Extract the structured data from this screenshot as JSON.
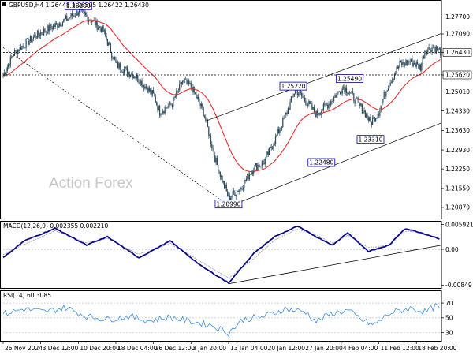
{
  "colors": {
    "candle": "#2c4a5c",
    "ma": "#e62e2e",
    "macd": "#0a0a8c",
    "macd_signal": "#999999",
    "rsi": "#3a8ee0",
    "label_border": "#0000aa",
    "axis": "#000000"
  },
  "header": {
    "price_title": "GBPUSD,H4  1.26448 1.26505 1.26422 1.26430",
    "macd_title": "MACD(12,26,9) 0.002355 0.002210",
    "rsi_title": "RSI(14) 60.3085",
    "watermark": "Action Forex"
  },
  "chart_data": [
    {
      "type": "candlestick",
      "symbol": "GBPUSD",
      "timeframe": "H4",
      "ohlc_current": [
        1.26448,
        1.26505,
        1.26422,
        1.2643
      ],
      "ylim": [
        1.205,
        1.2825
      ],
      "y_ticks": [
        "1.27700",
        "1.27090",
        "1.26430",
        "1.25620",
        "1.25010",
        "1.24330",
        "1.23630",
        "1.22930",
        "1.22250",
        "1.21550",
        "1.20870"
      ],
      "y_tick_values": [
        1.277,
        1.2709,
        1.2643,
        1.2562,
        1.2501,
        1.2433,
        1.2363,
        1.2293,
        1.2225,
        1.2155,
        1.2087
      ],
      "highlighted_ticks": [
        "1.26430",
        "1.25620"
      ],
      "x_ticks": [
        "26 Nov 2024",
        "3 Dec 12:00",
        "10 Dec 20:00",
        "18 Dec 04:00",
        "26 Dec 12:00",
        "3 Jan 20:00",
        "13 Jan 04:00",
        "20 Jan 12:00",
        "27 Jan 20:00",
        "4 Feb 04:00",
        "11 Feb 12:00",
        "18 Feb 20:00"
      ],
      "x_tick_index": [
        0,
        36,
        72,
        108,
        144,
        180,
        216,
        252,
        288,
        324,
        360,
        396
      ],
      "bar_count": 420,
      "close_path": [
        [
          0,
          1.256
        ],
        [
          10,
          1.264
        ],
        [
          30,
          1.27
        ],
        [
          50,
          1.274
        ],
        [
          60,
          1.276
        ],
        [
          72,
          1.279
        ],
        [
          84,
          1.276
        ],
        [
          96,
          1.272
        ],
        [
          108,
          1.26
        ],
        [
          126,
          1.256
        ],
        [
          144,
          1.249
        ],
        [
          150,
          1.243
        ],
        [
          162,
          1.246
        ],
        [
          172,
          1.254
        ],
        [
          180,
          1.252
        ],
        [
          192,
          1.243
        ],
        [
          204,
          1.225
        ],
        [
          216,
          1.212
        ],
        [
          228,
          1.216
        ],
        [
          240,
          1.223
        ],
        [
          250,
          1.225
        ],
        [
          258,
          1.231
        ],
        [
          270,
          1.241
        ],
        [
          280,
          1.251
        ],
        [
          292,
          1.246
        ],
        [
          300,
          1.242
        ],
        [
          312,
          1.246
        ],
        [
          326,
          1.252
        ],
        [
          332,
          1.25
        ],
        [
          340,
          1.246
        ],
        [
          348,
          1.242
        ],
        [
          352,
          1.239
        ],
        [
          360,
          1.243
        ],
        [
          368,
          1.252
        ],
        [
          380,
          1.26
        ],
        [
          390,
          1.261
        ],
        [
          400,
          1.259
        ],
        [
          404,
          1.265
        ],
        [
          412,
          1.2663
        ],
        [
          420,
          1.2643
        ]
      ],
      "labels": [
        {
          "text": "1.28100",
          "bar": 72,
          "price": 1.281
        },
        {
          "text": "1.20990",
          "bar": 216,
          "price": 1.2099
        },
        {
          "text": "1.25220",
          "bar": 278,
          "price": 1.2522
        },
        {
          "text": "1.25490",
          "bar": 332,
          "price": 1.2549
        },
        {
          "text": "1.22480",
          "bar": 305,
          "price": 1.2248
        },
        {
          "text": "1.23310",
          "bar": 352,
          "price": 1.2331
        }
      ],
      "horizontal_levels": [
        1.2643,
        1.2562
      ],
      "channel_lines": [
        {
          "from": [
            195,
            1.2398
          ],
          "to": [
            420,
            1.2711
          ]
        },
        {
          "from": [
            216,
            1.209
          ],
          "to": [
            420,
            1.239
          ]
        }
      ],
      "downtrend_line": {
        "from": [
          0,
          1.266
        ],
        "to": [
          216,
          1.2095
        ]
      }
    },
    {
      "type": "line",
      "title": "MACD(12,26,9) 0.002355 0.002210",
      "ylim": [
        -0.009,
        0.0064
      ],
      "y_ticks": [
        "0.005921",
        "0.00",
        "-0.00849"
      ],
      "y_tick_values": [
        0.005921,
        0.0,
        -0.00849
      ],
      "macd_path": [
        [
          0,
          -0.002
        ],
        [
          20,
          0.002
        ],
        [
          50,
          0.005
        ],
        [
          80,
          0.001
        ],
        [
          100,
          0.003
        ],
        [
          130,
          -0.002
        ],
        [
          160,
          0.002
        ],
        [
          190,
          -0.004
        ],
        [
          216,
          -0.008
        ],
        [
          240,
          -0.001
        ],
        [
          260,
          0.003
        ],
        [
          282,
          0.0055
        ],
        [
          300,
          0.003
        ],
        [
          316,
          0.001
        ],
        [
          330,
          0.004
        ],
        [
          350,
          -0.0005
        ],
        [
          370,
          0.001
        ],
        [
          385,
          0.005
        ],
        [
          400,
          0.004
        ],
        [
          420,
          0.0024
        ]
      ],
      "signal_path": [
        [
          0,
          -0.0012
        ],
        [
          20,
          0.0012
        ],
        [
          50,
          0.0044
        ],
        [
          80,
          0.0016
        ],
        [
          100,
          0.0026
        ],
        [
          130,
          -0.0012
        ],
        [
          160,
          0.0014
        ],
        [
          190,
          -0.003
        ],
        [
          216,
          -0.0068
        ],
        [
          240,
          -0.0022
        ],
        [
          260,
          0.0022
        ],
        [
          282,
          0.0048
        ],
        [
          300,
          0.0034
        ],
        [
          316,
          0.0014
        ],
        [
          330,
          0.0034
        ],
        [
          350,
          0.0004
        ],
        [
          370,
          0.001
        ],
        [
          385,
          0.0043
        ],
        [
          400,
          0.0041
        ],
        [
          420,
          0.0022
        ]
      ],
      "trendline": {
        "from": [
          216,
          -0.0082
        ],
        "to": [
          420,
          0.001
        ]
      }
    },
    {
      "type": "line",
      "title": "RSI(14) 60.3085",
      "ylim": [
        20,
        85
      ],
      "y_ticks": [
        "70",
        "50",
        "30"
      ],
      "y_tick_values": [
        70,
        50,
        30
      ],
      "rsi_path": [
        [
          0,
          55
        ],
        [
          20,
          62
        ],
        [
          40,
          58
        ],
        [
          60,
          64
        ],
        [
          80,
          52
        ],
        [
          100,
          48
        ],
        [
          120,
          52
        ],
        [
          140,
          46
        ],
        [
          160,
          51
        ],
        [
          180,
          45
        ],
        [
          200,
          40
        ],
        [
          216,
          30
        ],
        [
          230,
          48
        ],
        [
          250,
          52
        ],
        [
          270,
          62
        ],
        [
          290,
          58
        ],
        [
          300,
          45
        ],
        [
          315,
          56
        ],
        [
          330,
          60
        ],
        [
          345,
          46
        ],
        [
          355,
          40
        ],
        [
          370,
          56
        ],
        [
          390,
          63
        ],
        [
          405,
          58
        ],
        [
          415,
          66
        ],
        [
          420,
          60.3
        ]
      ]
    }
  ]
}
